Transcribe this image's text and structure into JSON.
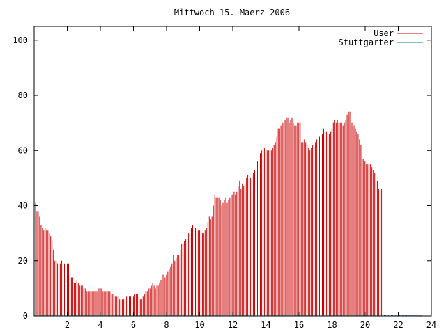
{
  "chart_data": {
    "type": "bar",
    "title": "Mittwoch 15. Maerz 2006",
    "xlabel": "",
    "ylabel": "",
    "xlim": [
      0,
      24
    ],
    "ylim": [
      0,
      105
    ],
    "xticks": [
      2,
      4,
      6,
      8,
      10,
      12,
      14,
      16,
      18,
      20,
      22,
      24
    ],
    "yticks": [
      0,
      20,
      40,
      60,
      80,
      100
    ],
    "grid": false,
    "legend_position": "top-right",
    "x_step": 0.0833,
    "series": [
      {
        "name": "User",
        "color": "#cc0000",
        "x_start": 0,
        "x_step": 0.0833,
        "values": [
          43,
          41,
          38,
          38,
          36,
          33,
          32,
          31,
          32,
          31,
          31,
          30,
          29,
          27,
          24,
          20,
          20,
          19,
          19,
          19,
          20,
          20,
          19,
          19,
          19,
          19,
          15,
          14,
          14,
          12,
          12,
          13,
          12,
          11,
          11,
          11,
          10,
          10,
          9,
          9,
          9,
          9,
          9,
          9,
          9,
          9,
          9,
          10,
          10,
          10,
          9,
          9,
          9,
          9,
          9,
          9,
          8,
          8,
          7,
          7,
          7,
          7,
          6,
          6,
          6,
          6,
          6,
          7,
          7,
          7,
          7,
          7,
          7,
          8,
          8,
          8,
          7,
          6,
          6,
          7,
          8,
          9,
          9,
          10,
          10,
          11,
          12,
          11,
          10,
          11,
          11,
          12,
          13,
          15,
          15,
          14,
          15,
          16,
          17,
          18,
          19,
          22,
          20,
          21,
          22,
          22,
          24,
          26,
          26,
          27,
          28,
          28,
          30,
          31,
          32,
          33,
          34,
          32,
          31,
          31,
          31,
          31,
          30,
          30,
          31,
          32,
          34,
          36,
          35,
          36,
          40,
          44,
          43,
          43,
          43,
          42,
          40,
          41,
          42,
          43,
          41,
          42,
          43,
          44,
          44,
          45,
          44,
          45,
          47,
          49,
          46,
          48,
          47,
          48,
          50,
          51,
          51,
          50,
          51,
          52,
          53,
          54,
          56,
          57,
          59,
          60,
          60,
          61,
          60,
          60,
          60,
          60,
          60,
          61,
          62,
          63,
          65,
          68,
          68,
          69,
          70,
          70,
          71,
          72,
          72,
          70,
          71,
          72,
          70,
          69,
          69,
          70,
          70,
          70,
          63,
          63,
          64,
          63,
          62,
          61,
          60,
          61,
          62,
          62,
          63,
          64,
          64,
          65,
          64,
          66,
          68,
          67,
          67,
          66,
          66,
          67,
          68,
          70,
          71,
          70,
          71,
          70,
          70,
          70,
          69,
          70,
          71,
          73,
          74,
          74,
          70,
          70,
          69,
          68,
          67,
          66,
          64,
          62,
          57,
          57,
          56,
          55,
          55,
          55,
          55,
          54,
          53,
          52,
          49,
          49,
          46,
          45,
          46,
          45
        ]
      },
      {
        "name": "Stuttgarter",
        "color": "#008080",
        "x_start": 0,
        "x_step": 0.0833,
        "values": [
          0,
          0,
          0,
          0,
          0,
          0,
          0,
          0,
          0,
          0,
          0,
          0,
          0,
          0,
          0,
          0,
          0,
          0,
          0,
          0,
          0,
          0,
          0,
          0,
          0,
          0,
          0,
          0,
          0,
          0,
          0,
          0,
          0,
          0,
          0,
          0,
          0,
          0,
          0,
          0,
          0,
          0,
          0,
          0,
          0,
          0,
          0,
          0,
          0,
          0,
          0,
          0,
          0,
          0,
          0,
          0,
          0,
          0,
          0,
          0,
          0,
          0,
          0,
          0,
          0,
          0,
          0,
          0,
          0,
          0,
          0,
          0,
          0,
          0,
          0,
          0,
          0,
          0,
          0,
          0,
          0,
          0,
          0,
          0,
          0,
          0,
          0,
          0,
          0,
          0,
          0,
          0,
          0,
          0,
          0,
          0,
          0,
          0,
          0,
          0,
          0,
          0,
          0,
          0,
          0,
          0,
          0,
          0,
          0,
          0,
          0,
          0,
          0,
          0,
          0,
          0,
          0,
          0,
          0,
          0,
          0,
          0,
          0,
          0,
          0,
          0,
          0,
          0,
          0,
          0,
          0,
          0,
          0,
          0,
          0,
          0,
          0,
          0,
          0,
          0,
          0,
          0,
          0,
          0,
          0,
          0,
          0,
          0,
          0,
          0,
          0,
          0,
          0,
          0,
          0,
          0,
          0,
          0,
          0,
          0,
          0,
          0,
          0,
          0,
          0,
          0,
          0,
          0,
          0,
          0,
          0,
          0,
          0,
          0,
          0,
          0,
          0,
          0,
          0,
          0,
          0,
          0,
          0,
          0,
          0,
          0,
          0,
          0,
          0,
          0,
          0,
          0,
          0,
          0,
          0,
          0,
          0,
          0,
          0,
          0,
          0,
          0,
          0,
          0,
          0,
          0,
          0,
          0,
          0,
          0,
          0,
          0,
          0,
          0,
          0,
          0,
          0,
          0,
          0,
          0,
          0,
          0,
          0,
          0,
          0,
          0,
          0,
          0,
          0,
          0,
          0,
          0,
          0,
          0,
          0,
          0,
          0,
          0,
          0,
          0,
          0,
          0,
          0,
          0,
          0,
          0,
          0,
          0,
          0,
          0,
          0,
          0,
          0,
          0,
          0,
          0,
          0,
          0,
          0,
          0,
          0,
          0,
          0,
          0,
          0,
          0,
          0,
          0,
          0,
          0,
          0,
          0,
          0,
          0,
          0,
          0,
          0,
          0,
          0,
          0,
          0,
          0
        ]
      }
    ]
  }
}
